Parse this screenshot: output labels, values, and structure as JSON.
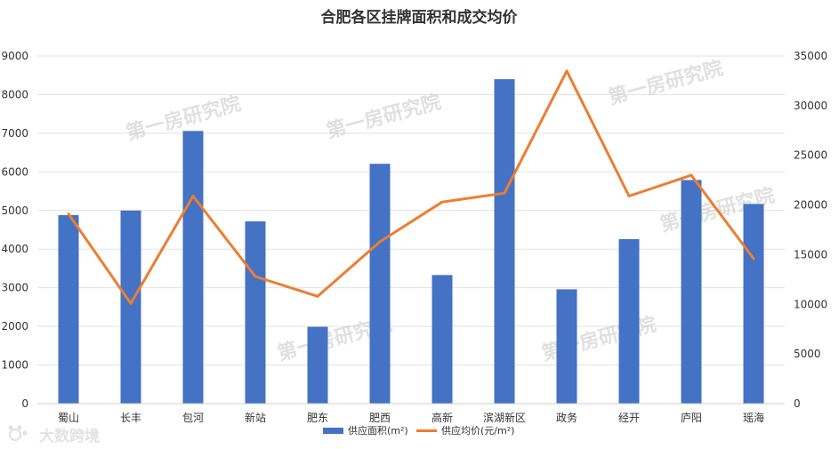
{
  "chart_data": {
    "type": "bar",
    "title": "合肥各区挂牌面积和成交均价",
    "categories": [
      "蜀山",
      "长丰",
      "包河",
      "新站",
      "肥东",
      "肥西",
      "高新",
      "滨湖新区",
      "政务",
      "经开",
      "庐阳",
      "瑶海"
    ],
    "series": [
      {
        "name": "供应面积(m²)",
        "type": "bar",
        "axis": "left",
        "color": "#4472C4",
        "values": [
          4880,
          5000,
          7060,
          4720,
          1990,
          6210,
          3330,
          8400,
          2960,
          4260,
          5790,
          5170
        ]
      },
      {
        "name": "供应均价(元/m²)",
        "type": "line",
        "axis": "right",
        "color": "#ED7D31",
        "values": [
          19100,
          10100,
          20900,
          12800,
          10800,
          16300,
          20300,
          21200,
          33500,
          20900,
          23000,
          14600
        ]
      }
    ],
    "y_left": {
      "range": [
        0,
        9000
      ],
      "ticks": [
        "0",
        "1000",
        "2000",
        "3000",
        "4000",
        "5000",
        "6000",
        "7000",
        "8000",
        "9000"
      ]
    },
    "y_right": {
      "range": [
        0,
        35000
      ],
      "ticks": [
        "0",
        "5000",
        "10000",
        "15000",
        "20000",
        "25000",
        "30000",
        "35000"
      ]
    },
    "grid": true,
    "legend_position": "bottom"
  },
  "watermarks": [
    "第一房研究院",
    "第一房研究院",
    "第一房研究院",
    "第一房研究院",
    "第一房研究院",
    "第一房研究院"
  ],
  "logo": {
    "text": "大数跨境",
    "icon": "bear-paw-icon"
  }
}
